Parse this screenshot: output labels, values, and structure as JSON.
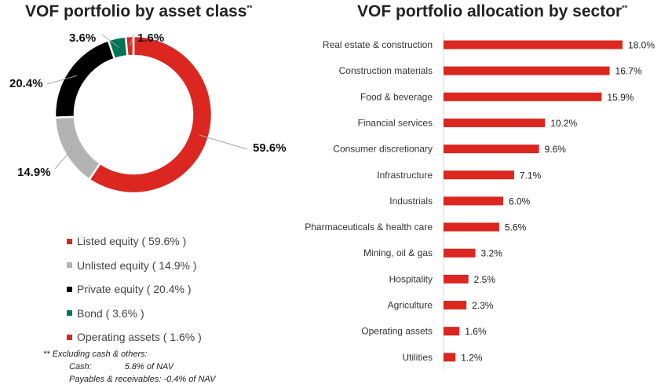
{
  "chart_data": [
    {
      "type": "pie",
      "title": "VOF portfolio by asset class",
      "title_mark": "**",
      "categories": [
        "Listed equity",
        "Unlisted equity",
        "Private equity",
        "Bond",
        "Operating assets"
      ],
      "values": [
        59.6,
        14.9,
        20.4,
        3.6,
        1.6
      ],
      "data_labels": [
        "59.6%",
        "14.9%",
        "20.4%",
        "3.6%",
        "1.6%"
      ],
      "legend_labels": [
        "Listed equity ( 59.6% )",
        "Unlisted equity ( 14.9% )",
        "Private equity ( 20.4% )",
        "Bond ( 3.6% )",
        "Operating assets ( 1.6% )"
      ],
      "colors": [
        "#dc2620",
        "#b3b3b3",
        "#000000",
        "#007457",
        "#dc2620"
      ],
      "legend_position": "bottom",
      "footnote": {
        "line1": "** Excluding cash & others:",
        "cash_label": "Cash:",
        "cash_value": "5.8% of NAV",
        "payables": "Payables & receivables: -0.4% of NAV"
      }
    },
    {
      "type": "bar",
      "orientation": "horizontal",
      "title": "VOF portfolio allocation by sector",
      "title_mark": "**",
      "categories": [
        "Real estate & construction",
        "Construction materials",
        "Food & beverage",
        "Financial services",
        "Consumer discretionary",
        "Infrastructure",
        "Industrials",
        "Pharmaceuticals & health care",
        "Mining, oil & gas",
        "Hospitality",
        "Agriculture",
        "Operating assets",
        "Utilities"
      ],
      "values": [
        18.0,
        16.7,
        15.9,
        10.2,
        9.6,
        7.1,
        6.0,
        5.6,
        3.2,
        2.5,
        2.3,
        1.6,
        1.2
      ],
      "data_labels": [
        "18.0%",
        "16.7%",
        "15.9%",
        "10.2%",
        "9.6%",
        "7.1%",
        "6.0%",
        "5.6%",
        "3.2%",
        "2.5%",
        "2.3%",
        "1.6%",
        "1.2%"
      ],
      "color": "#dc2620",
      "xlim": [
        0,
        18
      ],
      "grid": false
    }
  ]
}
